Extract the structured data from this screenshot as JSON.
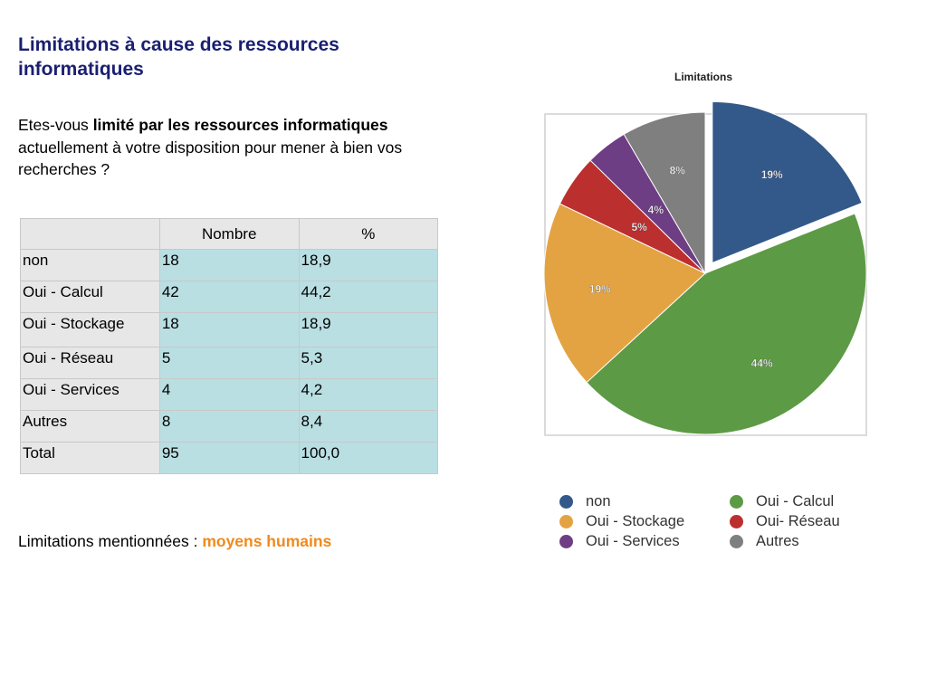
{
  "slide": {
    "title": "Limitations à cause des ressources informatiques",
    "question_pre": "Etes-vous ",
    "question_bold": "limité par les ressources informatiques",
    "question_post": " actuellement à votre disposition pour mener à bien vos recherches ?",
    "mentions_label": "Limitations mentionnées : ",
    "mentions_value": "moyens humains"
  },
  "table": {
    "headers": [
      "",
      "Nombre",
      "%"
    ],
    "rows": [
      [
        "non",
        "18",
        "18,9"
      ],
      [
        "Oui - Calcul",
        "42",
        "44,2"
      ],
      [
        "Oui - Stockage",
        "18",
        "18,9"
      ],
      [
        "Oui - Réseau",
        "5",
        "5,3"
      ],
      [
        "Oui - Services",
        "4",
        "4,2"
      ],
      [
        "Autres",
        "8",
        "8,4"
      ],
      [
        "Total",
        "95",
        "100,0"
      ]
    ]
  },
  "chart_data": {
    "type": "pie",
    "title": "Limitations",
    "slices": [
      {
        "name": "non",
        "value": 18,
        "label": "19%",
        "color": "#33588a",
        "exploded": true
      },
      {
        "name": "Oui - Calcul",
        "value": 42,
        "label": "44%",
        "color": "#5d9a45"
      },
      {
        "name": "Oui - Stockage",
        "value": 18,
        "label": "19%",
        "color": "#e4a342"
      },
      {
        "name": "Oui- Réseau",
        "value": 5,
        "label": "5%",
        "color": "#bc2f2f"
      },
      {
        "name": "Oui - Services",
        "value": 4,
        "label": "4%",
        "color": "#6e3e84"
      },
      {
        "name": "Autres",
        "value": 8,
        "label": "8%",
        "color": "#7f7f7f"
      }
    ],
    "legend_order": [
      "non",
      "Oui - Calcul",
      "Oui - Stockage",
      "Oui- Réseau",
      "Oui - Services",
      "Autres"
    ],
    "legend_placement": "bottom"
  }
}
